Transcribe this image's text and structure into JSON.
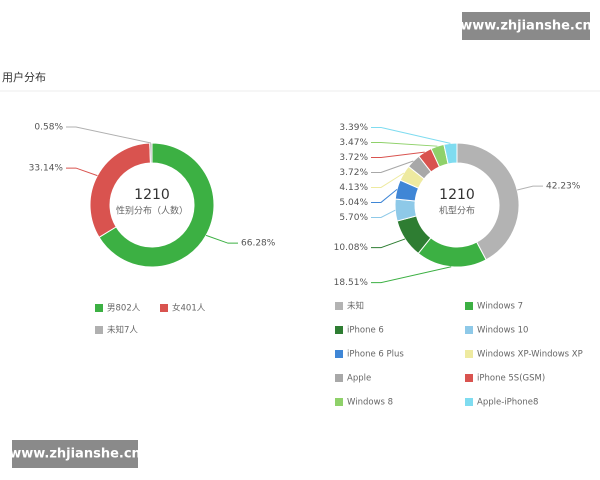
{
  "section_title": "用户分布",
  "watermarks": [
    "www.zhjianshe.cn",
    "www.zhjianshe.cn"
  ],
  "chart_data": [
    {
      "type": "pie",
      "center_value": 1210,
      "center_label": "性别分布（人数）",
      "categories": [
        "男802人",
        "女401人",
        "未知7人"
      ],
      "values": [
        66.28,
        33.14,
        0.58
      ],
      "value_labels": [
        "66.28%",
        "33.14%",
        "0.58%"
      ],
      "colors": [
        "#3cb043",
        "#d9534f",
        "#b0b0b0"
      ]
    },
    {
      "type": "pie",
      "center_value": 1210,
      "center_label": "机型分布",
      "categories": [
        "未知",
        "Windows 7",
        "iPhone 6",
        "Windows 10",
        "iPhone 6 Plus",
        "Windows XP-Windows XP",
        "Apple",
        "iPhone 5S(GSM)",
        "Windows 8",
        "Apple-iPhone8"
      ],
      "values": [
        42.23,
        18.51,
        10.08,
        5.7,
        5.04,
        4.13,
        3.72,
        3.72,
        3.47,
        3.39
      ],
      "value_labels": [
        "42.23%",
        "18.51%",
        "10.08%",
        "5.70%",
        "5.04%",
        "4.13%",
        "3.72%",
        "3.72%",
        "3.47%",
        "3.39%"
      ],
      "colors": [
        "#b3b3b3",
        "#3cb043",
        "#2e7d32",
        "#8ec9e8",
        "#3f86d6",
        "#eeeaa0",
        "#a8a8a8",
        "#d9534f",
        "#8fd16a",
        "#7fdcf0"
      ]
    }
  ]
}
